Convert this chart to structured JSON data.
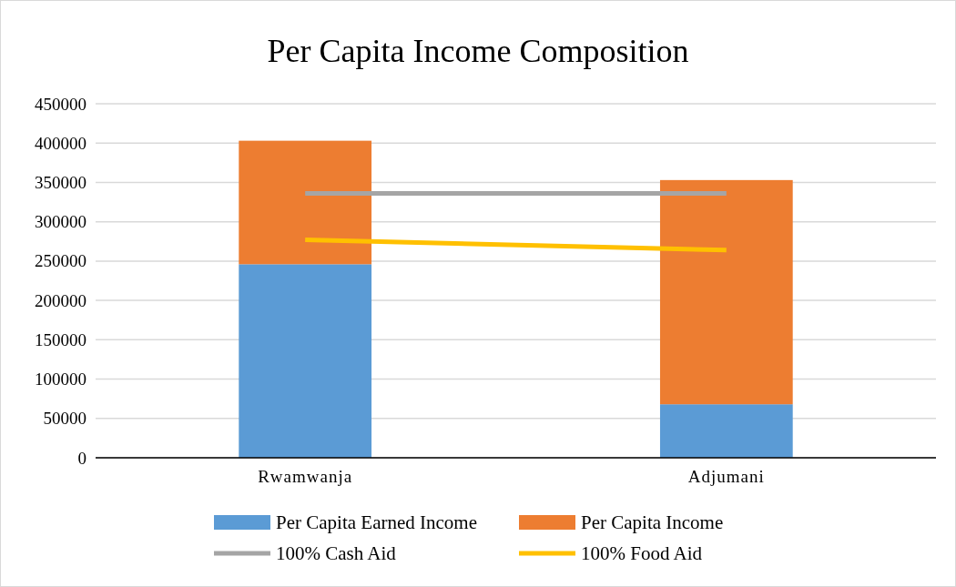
{
  "chart_data": {
    "type": "bar",
    "title": "Per Capita Income Composition",
    "categories": [
      "Rwamwanja",
      "Adjumani"
    ],
    "stacked": true,
    "series": [
      {
        "name": "Per Capita Earned Income",
        "color": "#5b9bd5",
        "values": [
          246000,
          68000
        ]
      },
      {
        "name": "Per Capita Income",
        "color": "#ed7d31",
        "values": [
          157000,
          285000
        ]
      },
      {
        "name": "100% Cash Aid",
        "type": "line",
        "color": "#a5a5a5",
        "values": [
          336000,
          336000
        ]
      },
      {
        "name": "100% Food Aid",
        "type": "line",
        "color": "#ffc000",
        "values": [
          277000,
          264000
        ]
      }
    ],
    "ylim": [
      0,
      450000
    ],
    "yticks": [
      0,
      50000,
      100000,
      150000,
      200000,
      250000,
      300000,
      350000,
      400000,
      450000
    ],
    "grid": "y",
    "legend": "bottom"
  }
}
